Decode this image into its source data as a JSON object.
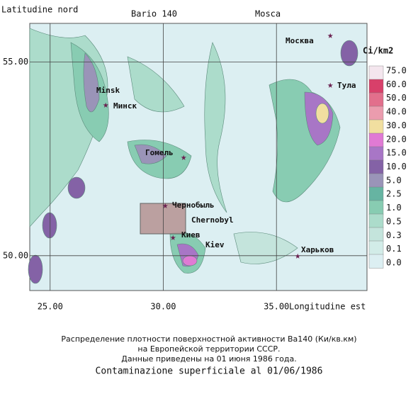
{
  "map": {
    "y_axis_title": "Latitudine nord",
    "title": "Bario 140",
    "top_label": "Mosca",
    "x_axis_title": "Longitudine est",
    "lon_range": [
      24.1,
      39
    ],
    "lat_range": [
      49.1,
      56
    ],
    "lat_ticks": [
      {
        "value": 55,
        "label": "55.00"
      },
      {
        "value": 50,
        "label": "50.00"
      }
    ],
    "lon_ticks": [
      {
        "value": 25,
        "label": "25.00"
      },
      {
        "value": 30,
        "label": "30.00"
      },
      {
        "value": 35,
        "label": "35.00"
      }
    ],
    "legend": {
      "title": "Ci/km2",
      "levels": [
        "75.0",
        "60.0",
        "50.0",
        "40.0",
        "30.0",
        "20.0",
        "15.0",
        "10.0",
        "5.0",
        "2.5",
        "1.0",
        "0.5",
        "0.3",
        "0.1",
        "0.0"
      ],
      "colors": [
        "#f4e6ee",
        "#d8406a",
        "#e26f8c",
        "#eb9cae",
        "#f1dfa0",
        "#e07ad4",
        "#a876c6",
        "#8462a6",
        "#9a94b8",
        "#66b4a2",
        "#88ccb2",
        "#acdccb",
        "#c4e4dc",
        "#d2ece8",
        "#dceff2"
      ]
    },
    "cities": [
      "Москва",
      "Тула",
      "Minsk",
      "Минск",
      "Гомель",
      "Чернобыль",
      "Chernobyl",
      "Киев",
      "Kiev",
      "Харьков"
    ],
    "caption": [
      "Распределение плотности поверхностной активности Ba140 (Ки/кв.км)",
      "на Европейской территории СССР.",
      "Данные приведены на 01 июня 1986 года.",
      "Contaminazione superficiale al 01/06/1986"
    ]
  }
}
